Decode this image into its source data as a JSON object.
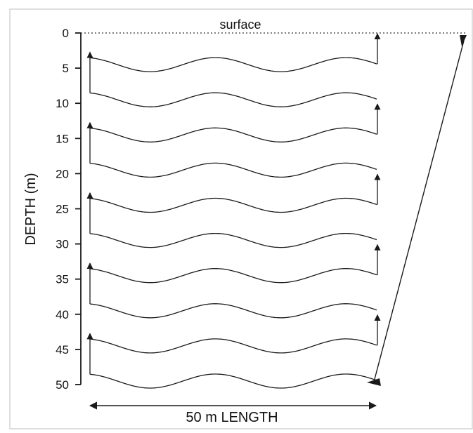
{
  "diagram": {
    "surface_label": "surface",
    "y_axis_label": "DEPTH (m)",
    "y_ticks": [
      "0",
      "5",
      "10",
      "15",
      "20",
      "25",
      "30",
      "35",
      "40",
      "45",
      "50"
    ],
    "length_label": "50 m LENGTH",
    "line_color": "#1a1a1a"
  }
}
